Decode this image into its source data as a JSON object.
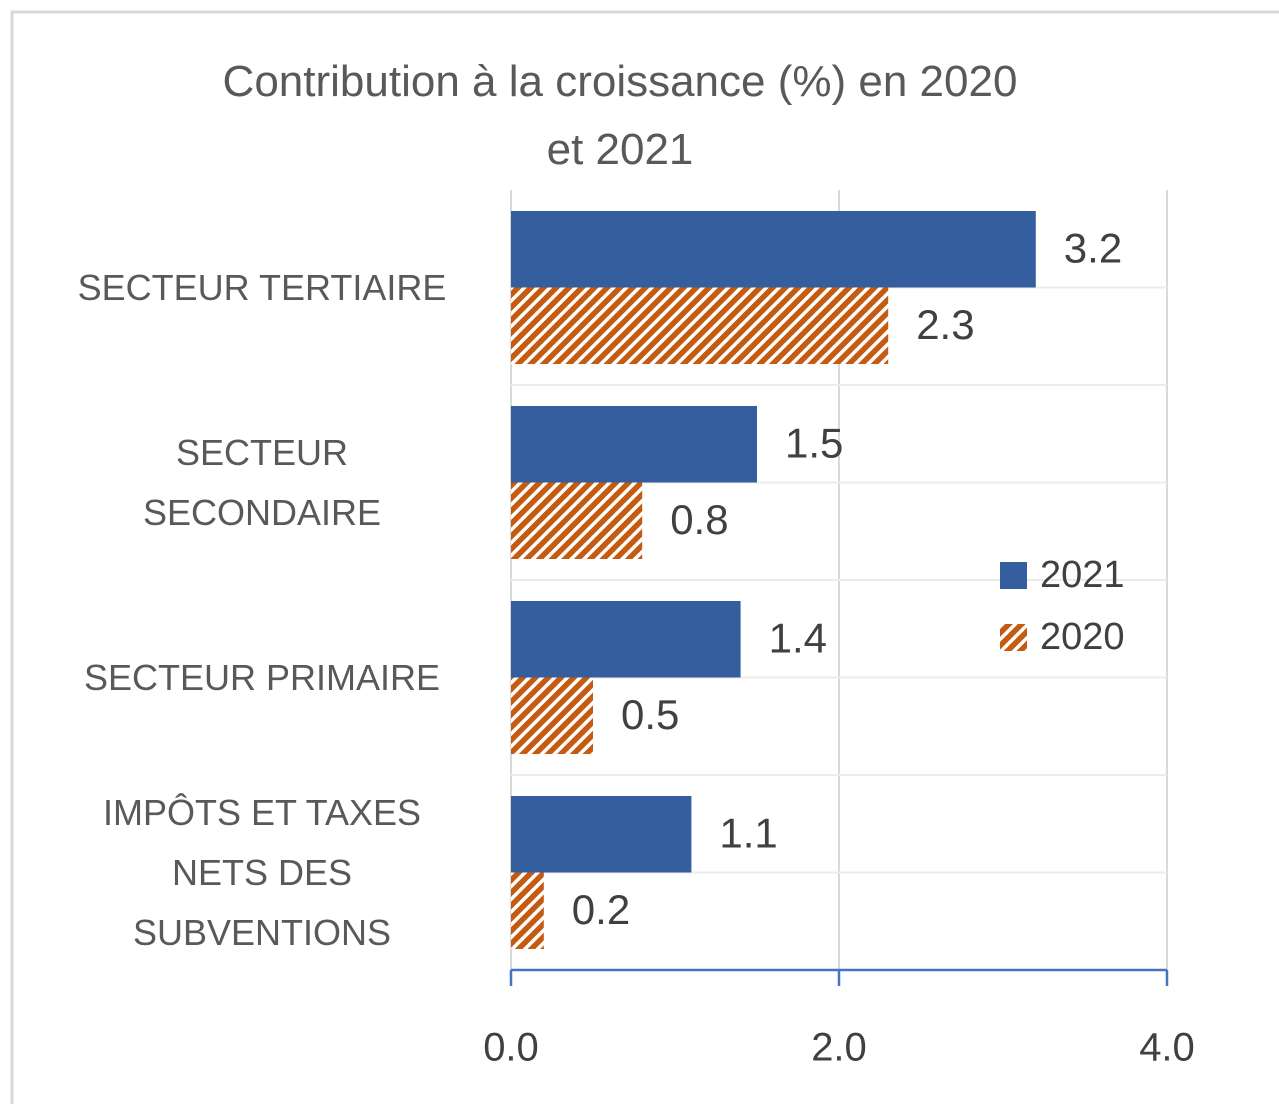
{
  "chart_data": {
    "type": "hbar",
    "title": "Contribution à la croissance (%) en 2020 et 2021",
    "categories": [
      "SECTEUR TERTIAIRE",
      "SECTEUR SECONDAIRE",
      "SECTEUR PRIMAIRE",
      "IMPÔTS ET TAXES NETS DES SUBVENTIONS"
    ],
    "series": [
      {
        "name": "2021",
        "color": "#355e9f",
        "values": [
          3.2,
          1.5,
          1.4,
          1.1
        ]
      },
      {
        "name": "2020",
        "color": "#c55a11",
        "hatch": true,
        "values": [
          2.3,
          0.8,
          0.5,
          0.2
        ]
      }
    ],
    "xlim": [
      0,
      4
    ],
    "xticks": [
      {
        "value": 0,
        "label": "0.0"
      },
      {
        "value": 2,
        "label": "2.0"
      },
      {
        "value": 4,
        "label": "4.0"
      }
    ],
    "grid": true,
    "legend": "right"
  }
}
